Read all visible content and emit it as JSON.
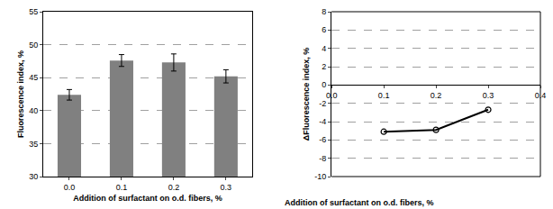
{
  "chart_data": [
    {
      "type": "bar",
      "categories": [
        "0.0",
        "0.1",
        "0.2",
        "0.3"
      ],
      "values": [
        42.4,
        47.6,
        47.3,
        45.2
      ],
      "errors": [
        0.8,
        0.9,
        1.3,
        1.0
      ],
      "color": "#808080",
      "x_label": "Addition of surfactant on o.d. fibers, %",
      "y_label": "Fluorescence index, %",
      "ylim": [
        30,
        55
      ],
      "yticks": [
        30,
        35,
        40,
        45,
        50,
        55
      ],
      "grid": true
    },
    {
      "type": "line",
      "x": [
        0.1,
        0.2,
        0.3
      ],
      "values": [
        -5.1,
        -4.9,
        -2.7
      ],
      "color": "#000000",
      "marker": "open_circle",
      "x_label": "Addition of surfactant on o.d. fibers, %",
      "y_label": "ΔFluorescence index, %",
      "xlim": [
        0,
        0.4
      ],
      "xticks": [
        {
          "value": 0,
          "label": "0.0"
        },
        0.1,
        0.2,
        0.3,
        0.4
      ],
      "ylim": [
        -10,
        8
      ],
      "yticks": [
        -10,
        -8,
        -6,
        -4,
        -2,
        0,
        2,
        4,
        6,
        8
      ],
      "grid": true
    }
  ]
}
